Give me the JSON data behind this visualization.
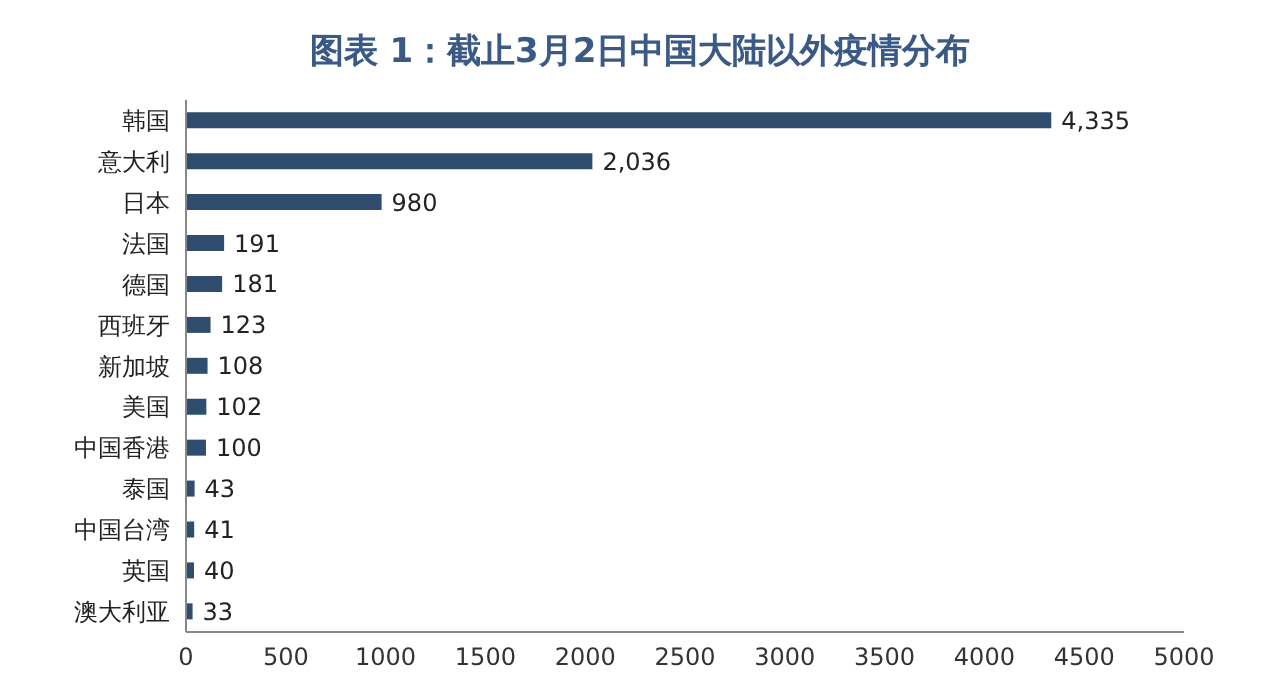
{
  "chart_data": {
    "type": "bar",
    "orientation": "horizontal",
    "title": "图表 1：截止3月2日中国大陆以外疫情分布",
    "categories": [
      "韩国",
      "意大利",
      "日本",
      "法国",
      "德国",
      "西班牙",
      "新加坡",
      "美国",
      "中国香港",
      "泰国",
      "中国台湾",
      "英国",
      "澳大利亚"
    ],
    "values": [
      4335,
      2036,
      980,
      191,
      181,
      123,
      108,
      102,
      100,
      43,
      41,
      40,
      33
    ],
    "value_labels": [
      "4,335",
      "2,036",
      "980",
      "191",
      "181",
      "123",
      "108",
      "102",
      "100",
      "43",
      "41",
      "40",
      "33"
    ],
    "color": "#2f4d6e",
    "xlim": [
      0,
      5000
    ],
    "xticks": [
      0,
      500,
      1000,
      1500,
      2000,
      2500,
      3000,
      3500,
      4000,
      4500,
      5000
    ],
    "grid": false,
    "legend": false
  }
}
